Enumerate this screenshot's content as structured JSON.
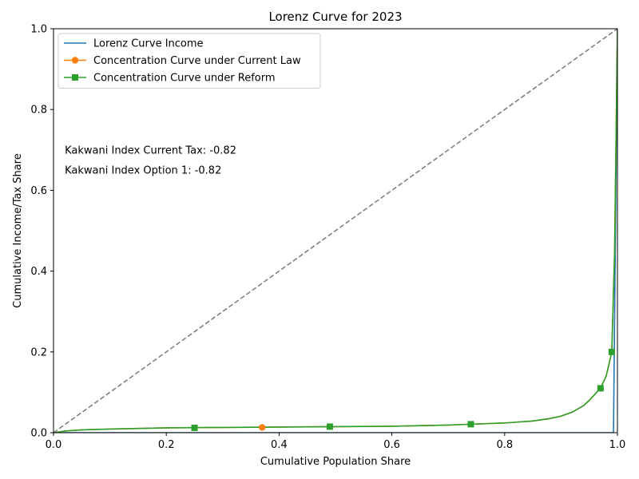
{
  "chart_data": {
    "type": "line",
    "title": "Lorenz Curve for 2023",
    "xlabel": "Cumulative Population Share",
    "ylabel": "Cumulative Income/Tax Share",
    "xlim": [
      0,
      1
    ],
    "ylim": [
      0,
      1
    ],
    "x_ticks": [
      "0.0",
      "0.2",
      "0.4",
      "0.6",
      "0.8",
      "1.0"
    ],
    "y_ticks": [
      "0.0",
      "0.2",
      "0.4",
      "0.6",
      "0.8",
      "1.0"
    ],
    "grid": false,
    "legend_position": "top-left",
    "reference_line": {
      "style": "dashed",
      "color": "#808080",
      "points": [
        [
          0,
          0
        ],
        [
          1,
          1
        ]
      ]
    },
    "series": [
      {
        "name": "Lorenz Curve Income",
        "color": "#1f77b4",
        "marker": "none",
        "points": [
          [
            0,
            0
          ],
          [
            0.993,
            0
          ],
          [
            1.0,
            1.0
          ]
        ]
      },
      {
        "name": "Concentration Curve under Current Law",
        "color": "#ff7f0e",
        "marker": "circle",
        "markers_at": [
          [
            0.37,
            0.013
          ]
        ],
        "points": [
          [
            0,
            0
          ],
          [
            0.02,
            0.004
          ],
          [
            0.05,
            0.007
          ],
          [
            0.1,
            0.009
          ],
          [
            0.2,
            0.012
          ],
          [
            0.3,
            0.013
          ],
          [
            0.4,
            0.014
          ],
          [
            0.5,
            0.015
          ],
          [
            0.6,
            0.016
          ],
          [
            0.7,
            0.019
          ],
          [
            0.74,
            0.021
          ],
          [
            0.8,
            0.024
          ],
          [
            0.85,
            0.029
          ],
          [
            0.88,
            0.035
          ],
          [
            0.9,
            0.041
          ],
          [
            0.92,
            0.051
          ],
          [
            0.94,
            0.067
          ],
          [
            0.95,
            0.08
          ],
          [
            0.96,
            0.095
          ],
          [
            0.97,
            0.11
          ],
          [
            0.98,
            0.14
          ],
          [
            0.99,
            0.2
          ],
          [
            0.995,
            0.45
          ],
          [
            1.0,
            1.0
          ]
        ]
      },
      {
        "name": "Concentration Curve under Reform",
        "color": "#2ca02c",
        "marker": "square",
        "markers_at": [
          [
            0.25,
            0.012
          ],
          [
            0.49,
            0.015
          ],
          [
            0.74,
            0.021
          ],
          [
            0.97,
            0.11
          ],
          [
            0.99,
            0.2
          ]
        ],
        "points": [
          [
            0,
            0
          ],
          [
            0.02,
            0.004
          ],
          [
            0.05,
            0.007
          ],
          [
            0.1,
            0.009
          ],
          [
            0.2,
            0.012
          ],
          [
            0.3,
            0.013
          ],
          [
            0.4,
            0.014
          ],
          [
            0.5,
            0.015
          ],
          [
            0.6,
            0.016
          ],
          [
            0.7,
            0.019
          ],
          [
            0.74,
            0.021
          ],
          [
            0.8,
            0.024
          ],
          [
            0.85,
            0.029
          ],
          [
            0.88,
            0.035
          ],
          [
            0.9,
            0.041
          ],
          [
            0.92,
            0.051
          ],
          [
            0.94,
            0.067
          ],
          [
            0.95,
            0.08
          ],
          [
            0.96,
            0.095
          ],
          [
            0.97,
            0.11
          ],
          [
            0.98,
            0.14
          ],
          [
            0.99,
            0.2
          ],
          [
            0.995,
            0.45
          ],
          [
            1.0,
            1.0
          ]
        ]
      }
    ],
    "annotations": [
      {
        "text": "Kakwani Index Current Tax:  -0.82",
        "x": 0.02,
        "y": 0.7
      },
      {
        "text": "Kakwani Index Option 1:  -0.82",
        "x": 0.02,
        "y": 0.65
      }
    ]
  }
}
